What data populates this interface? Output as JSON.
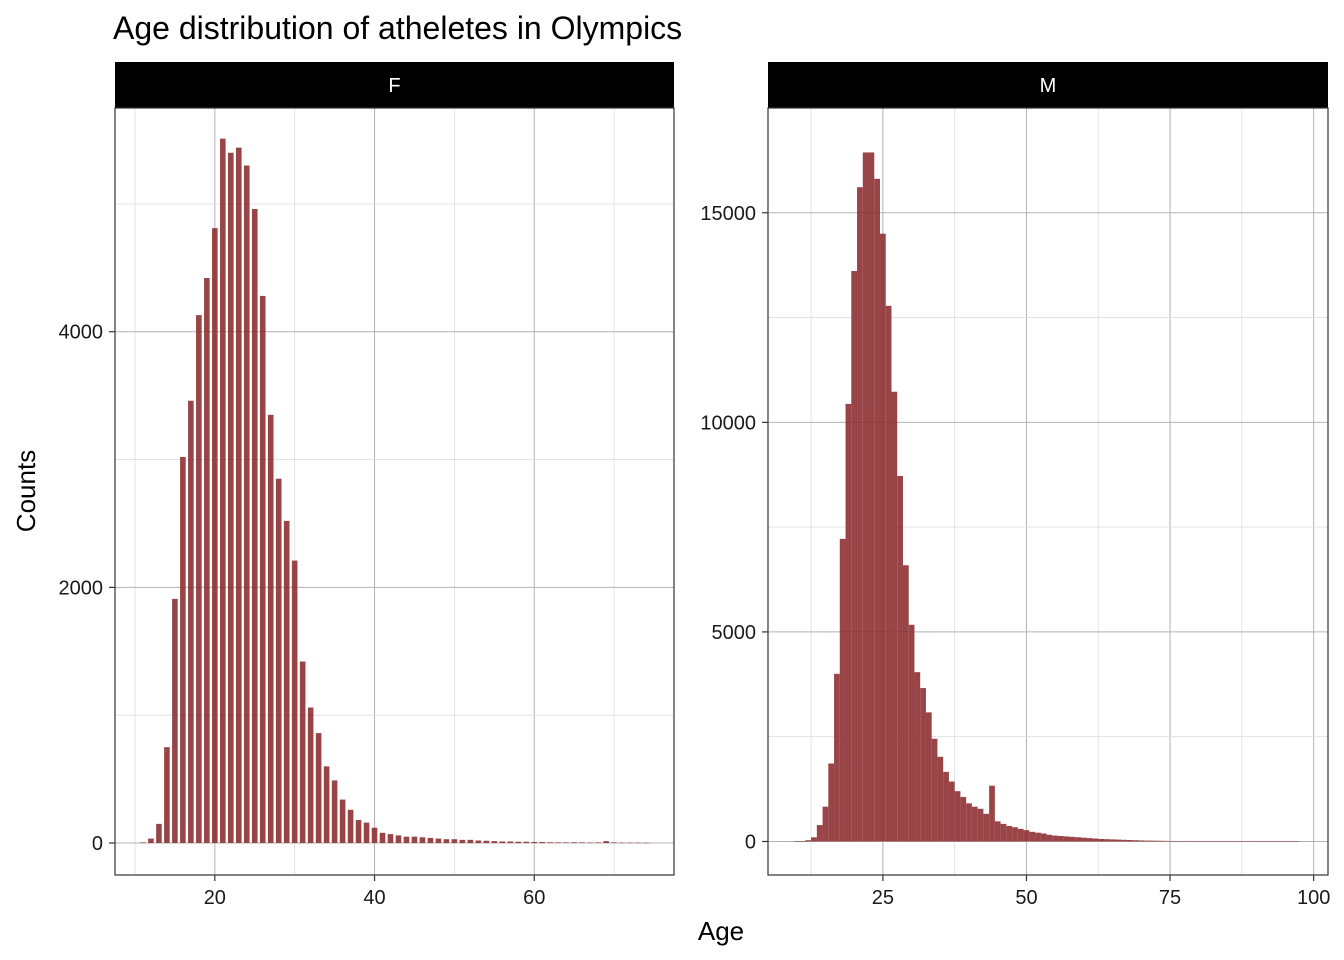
{
  "chart_data": {
    "type": "bar",
    "title": "Age distribution of atheletes in Olympics",
    "xlabel": "Age",
    "ylabel": "Counts",
    "bar_color": "#8b2b2e",
    "strip_color": "#000000",
    "grid": true,
    "panels": [
      {
        "strip": "F",
        "xlim": [
          7.5,
          77.5
        ],
        "ylim": [
          -250,
          5750
        ],
        "x_ticks": [
          20,
          40,
          60
        ],
        "y_ticks": [
          0,
          2000,
          4000
        ],
        "bin_width": 0.7,
        "x": [
          11,
          12,
          13,
          14,
          15,
          16,
          17,
          18,
          19,
          20,
          21,
          22,
          23,
          24,
          25,
          26,
          27,
          28,
          29,
          30,
          31,
          32,
          33,
          34,
          35,
          36,
          37,
          38,
          39,
          40,
          41,
          42,
          43,
          44,
          45,
          46,
          47,
          48,
          49,
          50,
          51,
          52,
          53,
          54,
          55,
          56,
          57,
          58,
          59,
          60,
          61,
          62,
          63,
          64,
          65,
          66,
          67,
          68,
          69,
          70,
          71,
          72,
          73,
          74
        ],
        "values": [
          5,
          35,
          150,
          750,
          1910,
          3020,
          3460,
          4130,
          4420,
          4810,
          5510,
          5400,
          5440,
          5300,
          4960,
          4280,
          3350,
          2850,
          2520,
          2210,
          1420,
          1060,
          860,
          600,
          490,
          340,
          260,
          180,
          160,
          120,
          80,
          70,
          60,
          50,
          50,
          45,
          40,
          35,
          30,
          30,
          25,
          25,
          20,
          18,
          15,
          12,
          12,
          10,
          10,
          8,
          8,
          6,
          5,
          5,
          6,
          5,
          4,
          5,
          15,
          5,
          3,
          3,
          3,
          2
        ]
      },
      {
        "strip": "M",
        "xlim": [
          5,
          102.5
        ],
        "ylim": [
          -800,
          17500
        ],
        "x_ticks": [
          25,
          50,
          75,
          100
        ],
        "y_ticks": [
          0,
          5000,
          10000,
          15000
        ],
        "bin_width": 1,
        "x": [
          10,
          11,
          12,
          13,
          14,
          15,
          16,
          17,
          18,
          19,
          20,
          21,
          22,
          23,
          24,
          25,
          26,
          27,
          28,
          29,
          30,
          31,
          32,
          33,
          34,
          35,
          36,
          37,
          38,
          39,
          40,
          41,
          42,
          43,
          44,
          45,
          46,
          47,
          48,
          49,
          50,
          51,
          52,
          53,
          54,
          55,
          56,
          57,
          58,
          59,
          60,
          61,
          62,
          63,
          64,
          65,
          66,
          67,
          68,
          69,
          70,
          71,
          72,
          73,
          74,
          75,
          76,
          77,
          78,
          79,
          80,
          81,
          82,
          83,
          84,
          85,
          86,
          87,
          88,
          89,
          90,
          91,
          92,
          93,
          94,
          95,
          96,
          97
        ],
        "values": [
          5,
          10,
          30,
          100,
          390,
          830,
          1860,
          4000,
          7220,
          10440,
          13610,
          15610,
          16440,
          16440,
          15810,
          14500,
          12780,
          10730,
          8720,
          6590,
          5170,
          4040,
          3660,
          3080,
          2450,
          2020,
          1660,
          1430,
          1200,
          1060,
          910,
          830,
          780,
          660,
          1330,
          480,
          420,
          370,
          340,
          300,
          270,
          230,
          210,
          190,
          160,
          140,
          130,
          120,
          110,
          100,
          90,
          80,
          70,
          60,
          55,
          50,
          45,
          40,
          35,
          30,
          25,
          22,
          20,
          18,
          15,
          13,
          12,
          10,
          9,
          8,
          7,
          6,
          5,
          5,
          4,
          4,
          4,
          3,
          3,
          3,
          2,
          2,
          2,
          2,
          1,
          1,
          1,
          1
        ]
      }
    ]
  }
}
